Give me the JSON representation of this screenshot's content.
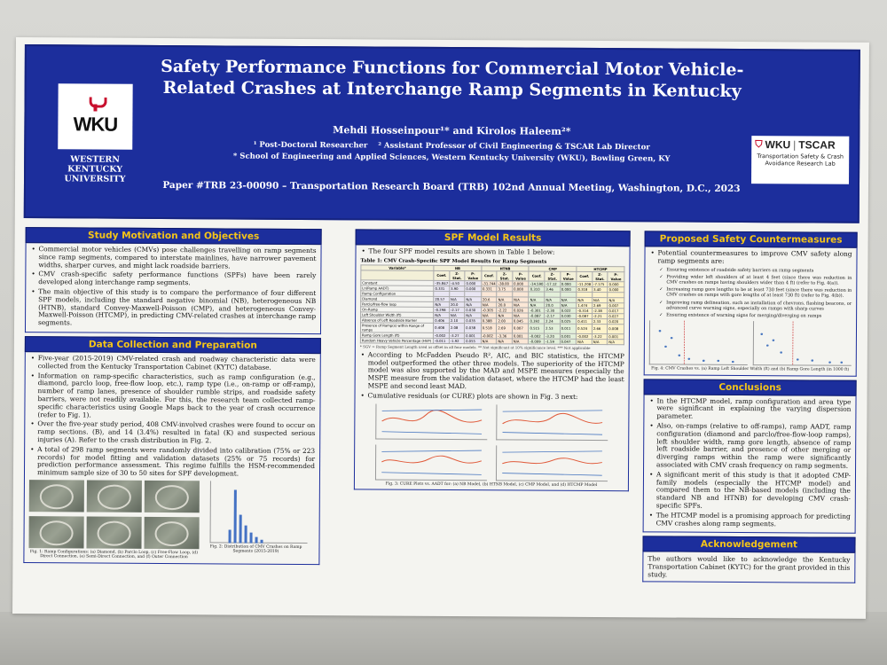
{
  "header": {
    "title": "Safety Performance Functions for Commercial Motor Vehicle-Related Crashes at Interchange Ramp Segments in Kentucky",
    "authors": "Mehdi Hosseinpour¹* and Kirolos Haleem²*",
    "affiliation_1": "¹ Post-Doctoral Researcher",
    "affiliation_2": "² Assistant Professor of Civil Engineering & TSCAR Lab Director",
    "school": "* School of Engineering and Applied Sciences, Western Kentucky University (WKU), Bowling Green, KY",
    "paper_line": "Paper #TRB 23-00090 – Transportation Research Board (TRB) 102nd Annual Meeting, Washington, D.C., 2023",
    "wku_logo_text": "WKU",
    "wku_name": "WESTERN KENTUCKY UNIVERSITY",
    "tscar_wku": "WKU",
    "tscar_name": "TSCAR",
    "tscar_sub": "Transportation Safety & Crash Avoidance Research Lab"
  },
  "motivation": {
    "heading": "Study Motivation and Objectives",
    "bullets": [
      "Commercial motor vehicles (CMVs) pose challenges travelling on ramp segments since ramp segments, compared to interstate mainlines, have narrower pavement widths, sharper curves, and might lack roadside barriers.",
      "CMV crash-specific safety performance functions (SPFs) have been rarely developed along interchange ramp segments.",
      "The main objective of this study is to compare the performance of four different SPF models, including the standard negative binomial (NB), heterogeneous NB (HTNB), standard Convey-Maxwell-Poisson (CMP), and heterogeneous Convey-Maxwell-Poisson (HTCMP), in predicting CMV-related crashes at interchange ramp segments."
    ]
  },
  "data_collection": {
    "heading": "Data Collection and Preparation",
    "bullets": [
      "Five-year (2015-2019) CMV-related crash and roadway characteristic data were collected from the Kentucky Transportation Cabinet (KYTC) database.",
      "Information on ramp-specific characteristics, such as ramp configuration (e.g., diamond, parclo loop, free-flow loop, etc.), ramp type (i.e., on-ramp or off-ramp), number of ramp lanes, presence of shoulder rumble strips, and roadside safety barriers, were not readily available. For this, the research team collected ramp-specific characteristics using Google Maps back to the year of crash occurrence (refer to Fig. 1).",
      "Over the five-year study period, 408 CMV-involved crashes were found to occur on ramp sections. (B), and 14 (3.4%) resulted in fatal (K) and suspected serious injuries (A). Refer to the crash distribution in Fig. 2.",
      "A total of 298 ramp segments were randomly divided into calibration (75% or 223 records) for model fitting and validation datasets (25% or 75 records) for prediction performance assessment. This regime fulfills the HSM-recommended minimum sample size of 30 to 50 sites for SPF development."
    ],
    "fig1_caption": "Fig. 1: Ramp Configurations: (a) Diamond, (b) Parclo Loop, (c) Free-Flow Loop, (d) Direct Connection, (e) Semi-Direct Connection, and (f) Outer Connection",
    "fig2_caption": "Fig. 2: Distribution of CMV Crashes on Ramp Segments (2015-2019)"
  },
  "spf_results": {
    "heading": "SPF Model Results",
    "intro": "The four SPF model results are shown in Table 1 below:",
    "table_title": "Table 1: CMV Crash-Specific SPF Model Results for Ramp Segments",
    "table_header": [
      "Variable*",
      "NB",
      "HTNB",
      "CMP",
      "HTCMP"
    ],
    "table_subheader": [
      "",
      "Coef.",
      "Z-Stat.",
      "P-Value",
      "Coef.",
      "Z-Stat.",
      "P-Value",
      "Coef.",
      "Z-Stat.",
      "P-Value",
      "Coef.",
      "Z-Stat.",
      "P-Value"
    ],
    "table_rows": [
      [
        "Constant",
        "-35.847",
        "-4.50",
        "0.000",
        "-31.744",
        "-38.00",
        "0.000",
        "-14.590",
        "-17.12",
        "0.000",
        "-11.208",
        "-7.175",
        "0.000"
      ],
      [
        "Ln(Ramp AADT)",
        "0.331",
        "3.90",
        "0.000",
        "0.331",
        "3.75",
        "0.000",
        "0.310",
        "3.46",
        "0.000",
        "0.318",
        "3.40",
        "0.000"
      ],
      [
        "Ramp Configuration",
        "",
        "",
        "",
        "",
        "",
        "",
        "",
        "",
        "",
        "",
        "",
        ""
      ],
      [
        "Diamond",
        "20.57",
        "N/A",
        "N/A",
        "20.6",
        "N/A",
        "N/A",
        "N/A",
        "N/A",
        "N/A",
        "N/A",
        "N/A",
        "N/A"
      ],
      [
        "Parclo/free-flow loop",
        "N/A",
        "20.0",
        "N/A",
        "N/A",
        "20.0",
        "N/A",
        "N/A",
        "20.0",
        "N/A",
        "1.474",
        "2.69",
        "0.007"
      ],
      [
        "On-Ramp",
        "-0.298",
        "-2.17",
        "0.030",
        "-0.305",
        "-2.22",
        "0.026",
        "-0.301",
        "-2.30",
        "0.022",
        "-0.314",
        "-2.38",
        "0.017"
      ],
      [
        "Left Shoulder Width (ft)",
        "N/A",
        "N/A",
        "N/A",
        "N/A",
        "N/A",
        "N/A",
        "-0.087",
        "-2.17",
        "0.030",
        "-0.087",
        "-2.21",
        "0.027"
      ],
      [
        "Absence of Left Roadside Barrier",
        "0.406",
        "2.10",
        "0.035",
        "0.388",
        "2.00",
        "0.045",
        "0.392",
        "2.24",
        "0.025",
        "0.411",
        "2.33",
        "0.020"
      ],
      [
        "Presence of Ramp(s) within Range of ramps",
        "0.408",
        "2.08",
        "0.038",
        "0.518",
        "2.69",
        "0.007",
        "0.515",
        "2.53",
        "0.011",
        "0.524",
        "2.66",
        "0.008"
      ],
      [
        "Ramp Gore Length (ft)",
        "-0.002",
        "-3.27",
        "0.001",
        "-0.002",
        "-3.36",
        "0.001",
        "-0.002",
        "-3.20",
        "0.001",
        "-0.002",
        "-3.22",
        "0.001"
      ],
      [
        "Random Heavy Vehicle Percentage (HVP)",
        "-0.011",
        "-1.92",
        "0.055",
        "N/A",
        "N/A",
        "N/A",
        "-0.009",
        "-1.59",
        "0.047",
        "N/A",
        "N/A",
        "N/A"
      ]
    ],
    "table_note": "* SGV = Ramp Segment Length used as offset in all four models. ** Not significant at 10% significance level. *** Not applicable",
    "bullets": [
      "According to McFadden Pseudo R², AIC, and BIC statistics, the HTCMP model outperformed the other three models. The superiority of the HTCMP model was also supported by the MAD and MSPE measures (especially the MSPE measure from the validation dataset, where the HTCMP had the least MSPE and second least MAD.",
      "Cumulative residuals (or CURE) plots are shown in Fig. 3 next:"
    ],
    "fig3_caption": "Fig. 3: CURE Plots vs. AADT for: (a) NB Model, (b) HTNB Model, (c) CMP Model, and (d) HTCMP Model"
  },
  "countermeasures": {
    "heading": "Proposed Safety Countermeasures",
    "intro": "Potential countermeasures to improve CMV safety along ramp segments are:",
    "items": [
      "Ensuring existence of roadside safety barriers on ramp segments",
      "Providing wider left shoulders of at least 4 feet (since there was reduction in CMV crashes on ramps having shoulders wider than 4 ft) (refer to Fig. 4(a)).",
      "Increasing ramp gore lengths to be at least 730 feet (since there was reduction in CMV crashes on ramps with gore lengths of at least 730 ft) (refer to Fig. 4(b)).",
      "Improving ramp delineation, such as installation of chevrons, flashing beacons, or advanced curve warning signs, especially on ramps with sharp curves",
      "Ensuring existence of warning signs for merging/diverging on ramps"
    ],
    "fig4_caption": "Fig. 4: CMV Crashes vs. (a) Ramp Left Shoulder Width (ft) and (b) Ramp Gore Length (in 1000 ft)"
  },
  "conclusions": {
    "heading": "Conclusions",
    "bullets": [
      "In the HTCMP model, ramp configuration and area type were significant in explaining the varying dispersion parameter.",
      "Also, on-ramps (relative to off-ramps), ramp AADT, ramp configuration (diamond and parclo/free-flow-loop ramps), left shoulder width, ramp gore length, absence of ramp left roadside barrier, and presence of other merging or diverging ramps within the ramp were significantly associated with CMV crash frequency on ramp segments.",
      "A significant merit of this study is that it adopted CMP-family models (especially the HTCMP model) and compared them to the NB-based models (including the standard NB and HTNB) for developing CMV crash-specific SPFs.",
      "The HTCMP model is a promising approach for predicting CMV crashes along ramp segments."
    ]
  },
  "acknowledgement": {
    "heading": "Acknowledgement",
    "text": "The authors would like to acknowledge the Kentucky Transportation Cabinet (KYTC) for the grant provided in this study."
  },
  "colors": {
    "header_blue": "#1c2e9c",
    "heading_gold": "#f5c518",
    "wku_red": "#c8102e"
  }
}
